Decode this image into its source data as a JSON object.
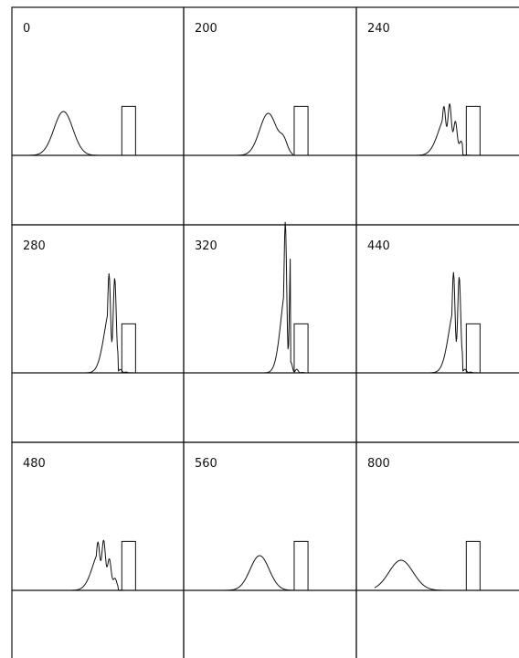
{
  "figure": {
    "panels": [
      {
        "label": "0",
        "packet": {
          "center": 0.3,
          "width": 0.055,
          "height": 0.48,
          "interference": 0.0,
          "mode": "gaussian"
        }
      },
      {
        "label": "200",
        "packet": {
          "center": 0.49,
          "width": 0.05,
          "height": 0.46,
          "interference": 0.12,
          "mode": "shoulder"
        }
      },
      {
        "label": "240",
        "packet": {
          "center": 0.53,
          "width": 0.05,
          "height": 0.45,
          "interference": 0.3,
          "mode": "oscillating"
        }
      },
      {
        "label": "280",
        "packet": {
          "center": 0.58,
          "width": 0.04,
          "height": 0.75,
          "interference": 0.55,
          "mode": "oscillating"
        }
      },
      {
        "label": "320",
        "packet": {
          "center": 0.6,
          "width": 0.035,
          "height": 1.0,
          "interference": 0.75,
          "mode": "oscillating"
        }
      },
      {
        "label": "440",
        "packet": {
          "center": 0.58,
          "width": 0.04,
          "height": 0.76,
          "interference": 0.55,
          "mode": "oscillating"
        }
      },
      {
        "label": "480",
        "packet": {
          "center": 0.52,
          "width": 0.048,
          "height": 0.45,
          "interference": 0.28,
          "mode": "oscillating"
        }
      },
      {
        "label": "560",
        "packet": {
          "center": 0.44,
          "width": 0.055,
          "height": 0.38,
          "interference": 0.0,
          "mode": "gaussian"
        }
      },
      {
        "label": "800",
        "packet": {
          "center": 0.26,
          "width": 0.07,
          "height": 0.33,
          "interference": 0.0,
          "mode": "gaussian"
        }
      }
    ],
    "barrier": {
      "left": 0.64,
      "right": 0.72,
      "height": 0.32
    }
  }
}
